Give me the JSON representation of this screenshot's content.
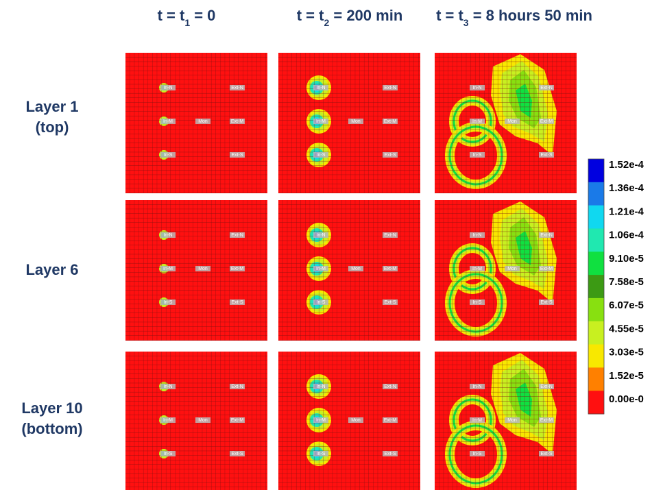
{
  "column_titles": [
    [
      "t = t",
      "1",
      " = 0"
    ],
    [
      "t = t",
      "2",
      " = 200 min"
    ],
    [
      "t = t",
      "3",
      " = 8 hours 50 min"
    ]
  ],
  "row_labels": [
    [
      "Layer 1",
      "(top)"
    ],
    [
      "Layer 6"
    ],
    [
      "Layer 10",
      "(bottom)"
    ]
  ],
  "wells": [
    "In-N",
    "Ext-N",
    "In-M",
    "Mon",
    "Ext-M",
    "In-S",
    "Ext-S"
  ],
  "colorbar": {
    "labels": [
      "1.52e-4",
      "1.36e-4",
      "1.21e-4",
      "1.06e-4",
      "9.10e-5",
      "7.58e-5",
      "6.07e-5",
      "4.55e-5",
      "3.03e-5",
      "1.52e-5",
      "0.00e-0"
    ],
    "colors": [
      "#0000e0",
      "#1a7ae8",
      "#10d8f0",
      "#20e8b0",
      "#10e040",
      "#3c9a14",
      "#88e010",
      "#c8f020",
      "#f8e800",
      "#ff8000",
      "#ff1010"
    ]
  }
}
